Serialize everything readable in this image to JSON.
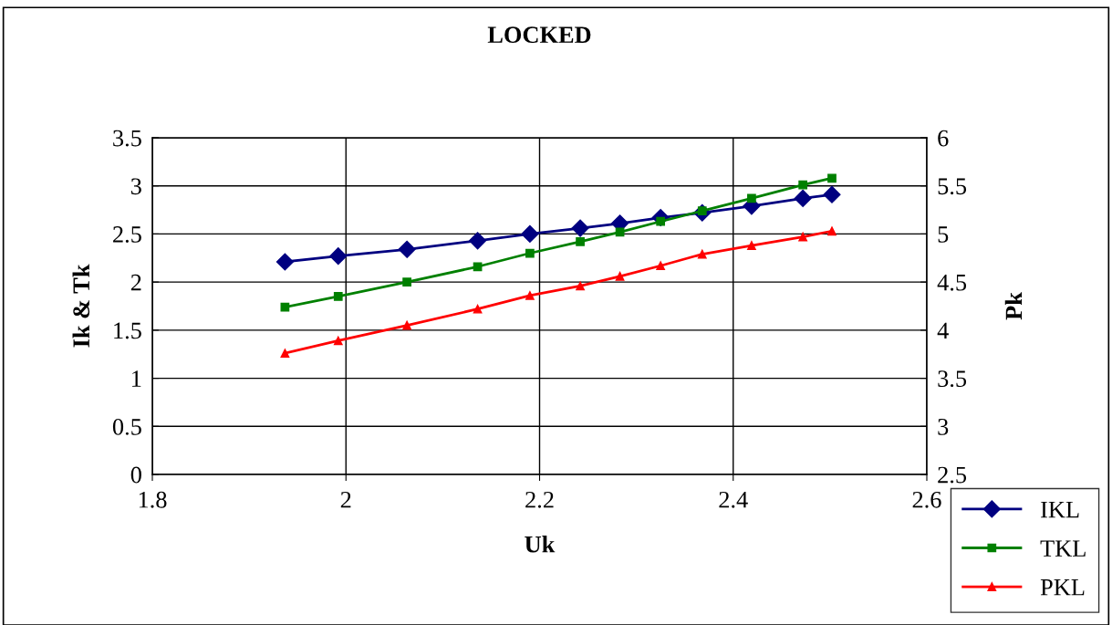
{
  "chart_data": {
    "type": "line",
    "title": "LOCKED",
    "xlabel": "Uk",
    "ylabel": "Ik & Tk",
    "y2label": "Pk",
    "x": [
      1.937,
      1.992,
      2.063,
      2.136,
      2.19,
      2.242,
      2.283,
      2.325,
      2.368,
      2.419,
      2.472,
      2.502
    ],
    "series": [
      {
        "name": "IKL",
        "color": "#000080",
        "marker": "diamond",
        "values": [
          2.21,
          2.27,
          2.34,
          2.43,
          2.5,
          2.56,
          2.61,
          2.67,
          2.72,
          2.79,
          2.87,
          2.91
        ]
      },
      {
        "name": "TKL",
        "color": "#008000",
        "marker": "square",
        "values": [
          1.74,
          1.85,
          2.0,
          2.16,
          2.3,
          2.42,
          2.52,
          2.63,
          2.74,
          2.87,
          3.01,
          3.08
        ]
      },
      {
        "name": "PKL",
        "color": "#ff0000",
        "marker": "triangle",
        "axis": "y2",
        "values": [
          3.76,
          3.89,
          4.05,
          4.22,
          4.36,
          4.46,
          4.56,
          4.67,
          4.79,
          4.88,
          4.97,
          5.03
        ]
      }
    ],
    "xlim": [
      1.8,
      2.6
    ],
    "xticks": [
      1.8,
      2,
      2.2,
      2.4,
      2.6
    ],
    "ylim": [
      0,
      3.5
    ],
    "yticks": [
      0,
      0.5,
      1,
      1.5,
      2,
      2.5,
      3,
      3.5
    ],
    "y2lim": [
      2.5,
      6
    ],
    "y2ticks": [
      2.5,
      3,
      3.5,
      4,
      4.5,
      5,
      5.5,
      6
    ],
    "grid": true,
    "legend": "bottom right",
    "line_style": "solid"
  }
}
